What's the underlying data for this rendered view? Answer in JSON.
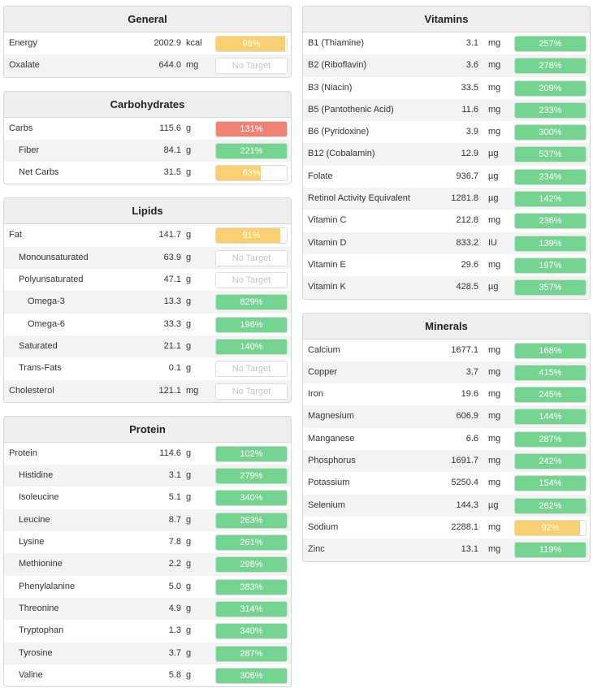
{
  "colors": {
    "green": "#72d48f",
    "yellow": "#f8d071",
    "red": "#ef8275",
    "no_target_text": "#c4c4c4",
    "header_bg": "#eeeeee",
    "row_alt_bg": "#f3f3f3"
  },
  "columns": [
    {
      "panels": [
        {
          "title": "General",
          "rows": [
            {
              "name": "Energy",
              "amount": "2002.9",
              "unit": "kcal",
              "level": 0,
              "percent": "98%",
              "fill": 0.98,
              "status": "yellow"
            },
            {
              "name": "Oxalate",
              "amount": "644.0",
              "unit": "mg",
              "level": 0,
              "percent": "No Target",
              "fill": 0,
              "status": "none"
            }
          ]
        },
        {
          "title": "Carbohydrates",
          "rows": [
            {
              "name": "Carbs",
              "amount": "115.6",
              "unit": "g",
              "level": 0,
              "percent": "131%",
              "fill": 1,
              "status": "red"
            },
            {
              "name": "Fiber",
              "amount": "84.1",
              "unit": "g",
              "level": 1,
              "percent": "221%",
              "fill": 1,
              "status": "green"
            },
            {
              "name": "Net Carbs",
              "amount": "31.5",
              "unit": "g",
              "level": 1,
              "percent": "63%",
              "fill": 0.63,
              "status": "yellow"
            }
          ]
        },
        {
          "title": "Lipids",
          "rows": [
            {
              "name": "Fat",
              "amount": "141.7",
              "unit": "g",
              "level": 0,
              "percent": "91%",
              "fill": 0.91,
              "status": "yellow"
            },
            {
              "name": "Monounsaturated",
              "amount": "63.9",
              "unit": "g",
              "level": 1,
              "percent": "No Target",
              "fill": 0,
              "status": "none"
            },
            {
              "name": "Polyunsaturated",
              "amount": "47.1",
              "unit": "g",
              "level": 1,
              "percent": "No Target",
              "fill": 0,
              "status": "none"
            },
            {
              "name": "Omega-3",
              "amount": "13.3",
              "unit": "g",
              "level": 2,
              "percent": "829%",
              "fill": 1,
              "status": "green"
            },
            {
              "name": "Omega-6",
              "amount": "33.3",
              "unit": "g",
              "level": 2,
              "percent": "196%",
              "fill": 1,
              "status": "green"
            },
            {
              "name": "Saturated",
              "amount": "21.1",
              "unit": "g",
              "level": 1,
              "percent": "140%",
              "fill": 1,
              "status": "green"
            },
            {
              "name": "Trans-Fats",
              "amount": "0.1",
              "unit": "g",
              "level": 1,
              "percent": "No Target",
              "fill": 0,
              "status": "none"
            },
            {
              "name": "Cholesterol",
              "amount": "121.1",
              "unit": "mg",
              "level": 0,
              "percent": "No Target",
              "fill": 0,
              "status": "none"
            }
          ]
        },
        {
          "title": "Protein",
          "rows": [
            {
              "name": "Protein",
              "amount": "114.6",
              "unit": "g",
              "level": 0,
              "percent": "102%",
              "fill": 1,
              "status": "green"
            },
            {
              "name": "Histidine",
              "amount": "3.1",
              "unit": "g",
              "level": 1,
              "percent": "279%",
              "fill": 1,
              "status": "green"
            },
            {
              "name": "Isoleucine",
              "amount": "5.1",
              "unit": "g",
              "level": 1,
              "percent": "340%",
              "fill": 1,
              "status": "green"
            },
            {
              "name": "Leucine",
              "amount": "8.7",
              "unit": "g",
              "level": 1,
              "percent": "263%",
              "fill": 1,
              "status": "green"
            },
            {
              "name": "Lysine",
              "amount": "7.8",
              "unit": "g",
              "level": 1,
              "percent": "261%",
              "fill": 1,
              "status": "green"
            },
            {
              "name": "Methionine",
              "amount": "2.2",
              "unit": "g",
              "level": 1,
              "percent": "298%",
              "fill": 1,
              "status": "green"
            },
            {
              "name": "Phenylalanine",
              "amount": "5.0",
              "unit": "g",
              "level": 1,
              "percent": "383%",
              "fill": 1,
              "status": "green"
            },
            {
              "name": "Threonine",
              "amount": "4.9",
              "unit": "g",
              "level": 1,
              "percent": "314%",
              "fill": 1,
              "status": "green"
            },
            {
              "name": "Tryptophan",
              "amount": "1.3",
              "unit": "g",
              "level": 1,
              "percent": "340%",
              "fill": 1,
              "status": "green"
            },
            {
              "name": "Tyrosine",
              "amount": "3.7",
              "unit": "g",
              "level": 1,
              "percent": "287%",
              "fill": 1,
              "status": "green"
            },
            {
              "name": "Valine",
              "amount": "5.8",
              "unit": "g",
              "level": 1,
              "percent": "306%",
              "fill": 1,
              "status": "green"
            }
          ]
        }
      ]
    },
    {
      "panels": [
        {
          "title": "Vitamins",
          "rows": [
            {
              "name": "B1 (Thiamine)",
              "amount": "3.1",
              "unit": "mg",
              "level": 0,
              "percent": "257%",
              "fill": 1,
              "status": "green"
            },
            {
              "name": "B2 (Riboflavin)",
              "amount": "3.6",
              "unit": "mg",
              "level": 0,
              "percent": "278%",
              "fill": 1,
              "status": "green"
            },
            {
              "name": "B3 (Niacin)",
              "amount": "33.5",
              "unit": "mg",
              "level": 0,
              "percent": "209%",
              "fill": 1,
              "status": "green"
            },
            {
              "name": "B5 (Pantothenic Acid)",
              "amount": "11.6",
              "unit": "mg",
              "level": 0,
              "percent": "233%",
              "fill": 1,
              "status": "green"
            },
            {
              "name": "B6 (Pyridoxine)",
              "amount": "3.9",
              "unit": "mg",
              "level": 0,
              "percent": "300%",
              "fill": 1,
              "status": "green"
            },
            {
              "name": "B12 (Cobalamin)",
              "amount": "12.9",
              "unit": "µg",
              "level": 0,
              "percent": "537%",
              "fill": 1,
              "status": "green"
            },
            {
              "name": "Folate",
              "amount": "936.7",
              "unit": "µg",
              "level": 0,
              "percent": "234%",
              "fill": 1,
              "status": "green"
            },
            {
              "name": "Retinol Activity Equivalent",
              "amount": "1281.8",
              "unit": "µg",
              "level": 0,
              "percent": "142%",
              "fill": 1,
              "status": "green"
            },
            {
              "name": "Vitamin C",
              "amount": "212.8",
              "unit": "mg",
              "level": 0,
              "percent": "236%",
              "fill": 1,
              "status": "green"
            },
            {
              "name": "Vitamin D",
              "amount": "833.2",
              "unit": "IU",
              "level": 0,
              "percent": "139%",
              "fill": 1,
              "status": "green"
            },
            {
              "name": "Vitamin E",
              "amount": "29.6",
              "unit": "mg",
              "level": 0,
              "percent": "197%",
              "fill": 1,
              "status": "green"
            },
            {
              "name": "Vitamin K",
              "amount": "428.5",
              "unit": "µg",
              "level": 0,
              "percent": "357%",
              "fill": 1,
              "status": "green"
            }
          ]
        },
        {
          "title": "Minerals",
          "rows": [
            {
              "name": "Calcium",
              "amount": "1677.1",
              "unit": "mg",
              "level": 0,
              "percent": "168%",
              "fill": 1,
              "status": "green"
            },
            {
              "name": "Copper",
              "amount": "3.7",
              "unit": "mg",
              "level": 0,
              "percent": "415%",
              "fill": 1,
              "status": "green"
            },
            {
              "name": "Iron",
              "amount": "19.6",
              "unit": "mg",
              "level": 0,
              "percent": "245%",
              "fill": 1,
              "status": "green"
            },
            {
              "name": "Magnesium",
              "amount": "606.9",
              "unit": "mg",
              "level": 0,
              "percent": "144%",
              "fill": 1,
              "status": "green"
            },
            {
              "name": "Manganese",
              "amount": "6.6",
              "unit": "mg",
              "level": 0,
              "percent": "287%",
              "fill": 1,
              "status": "green"
            },
            {
              "name": "Phosphorus",
              "amount": "1691.7",
              "unit": "mg",
              "level": 0,
              "percent": "242%",
              "fill": 1,
              "status": "green"
            },
            {
              "name": "Potassium",
              "amount": "5250.4",
              "unit": "mg",
              "level": 0,
              "percent": "154%",
              "fill": 1,
              "status": "green"
            },
            {
              "name": "Selenium",
              "amount": "144.3",
              "unit": "µg",
              "level": 0,
              "percent": "262%",
              "fill": 1,
              "status": "green"
            },
            {
              "name": "Sodium",
              "amount": "2288.1",
              "unit": "mg",
              "level": 0,
              "percent": "92%",
              "fill": 0.92,
              "status": "yellow"
            },
            {
              "name": "Zinc",
              "amount": "13.1",
              "unit": "mg",
              "level": 0,
              "percent": "119%",
              "fill": 1,
              "status": "green"
            }
          ]
        }
      ]
    }
  ]
}
